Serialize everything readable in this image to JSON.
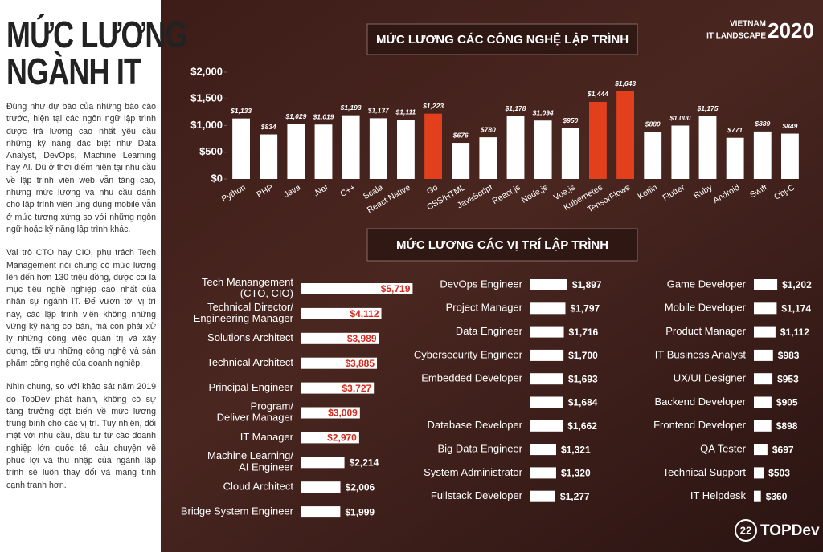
{
  "sidebar": {
    "title_lines": [
      "MỨC LƯƠNG",
      "NGÀNH IT"
    ],
    "paragraphs": [
      "Đúng như dự báo của những báo cáo trước, hiện tại các ngôn ngữ lập trình được trả lương cao nhất yêu cầu những kỹ năng đặc biệt như Data Analyst, DevOps, Machine Learning hay AI. Dù ở thời điểm hiện tại nhu cầu về lập trình viên web vẫn tăng cao, nhưng mức lương và nhu cầu dành cho lập trình viên ứng dụng mobile vẫn ở mức tương xứng so với những ngôn ngữ hoặc kỹ năng lập trình khác.",
      "Vai trò CTO hay CIO, phụ trách Tech Management nói chung có mức lương lên đến hơn 130 triệu đồng, được coi là mục tiêu nghề nghiệp cao nhất của nhân sự ngành IT. Để vươn tới vị trí này, các lập trình viên không những vững kỹ năng cơ bản, mà còn phải xử lý những công việc quản trị và xây dựng, tối ưu những công nghệ và sản phẩm công nghệ của doanh nghiệp.",
      "Nhìn chung, so với khảo sát năm 2019 do TopDev phát hành, không có sự tăng trưởng đột biến về mức lương trung bình cho các vị trí. Tuy nhiên, đối mặt với nhu cầu, đầu tư từ các doanh nghiệp lớn quốc tế, câu chuyện về phúc lợi và thu nhập của ngành lập trình sẽ luôn thay đổi và mang tính cạnh tranh hơn."
    ]
  },
  "brand": {
    "country": "VIETNAM",
    "name": "IT LANDSCAPE",
    "year": "2020",
    "logo_number": "22",
    "logo_text": "TOPDev"
  },
  "chart_data": [
    {
      "type": "bar",
      "title": "MỨC LƯƠNG CÁC CÔNG NGHỆ LẬP TRÌNH",
      "categories": [
        "Python",
        "PHP",
        "Java",
        ".Net",
        "C++",
        "Scala",
        "React Native",
        "Go",
        "CSS/HTML",
        "JavaScript",
        "React.js",
        "Node.js",
        "Vue.js",
        "Kubernetes",
        "TensorFlows",
        "Kotlin",
        "Flutter",
        "Ruby",
        "Android",
        "Swift",
        "Obj-C"
      ],
      "values": [
        1133,
        834,
        1029,
        1019,
        1193,
        1137,
        1111,
        1223,
        676,
        780,
        1178,
        1094,
        950,
        1444,
        1643,
        880,
        1000,
        1175,
        771,
        889,
        849
      ],
      "value_labels": [
        "$1,133",
        "$834",
        "$1,029",
        "$1,019",
        "$1,193",
        "$1,137",
        "$1,111",
        "$1,223",
        "$676",
        "$780",
        "$1,178",
        "$1,094",
        "$950",
        "$1,444",
        "$1,643",
        "$880",
        "$1,000",
        "$1,175",
        "$771",
        "$889",
        "$849"
      ],
      "colors": [
        "#ffffff",
        "#ffffff",
        "#ffffff",
        "#ffffff",
        "#ffffff",
        "#ffffff",
        "#ffffff",
        "#e2401c",
        "#ffffff",
        "#ffffff",
        "#ffffff",
        "#ffffff",
        "#ffffff",
        "#e2401c",
        "#e2401c",
        "#ffffff",
        "#ffffff",
        "#ffffff",
        "#ffffff",
        "#ffffff",
        "#ffffff"
      ],
      "ylim": [
        0,
        2000
      ],
      "yticks": [
        {
          "value": 0,
          "label": "$0"
        },
        {
          "value": 500,
          "label": "$500"
        },
        {
          "value": 1000,
          "label": "$1,000"
        },
        {
          "value": 1500,
          "label": "$1,500"
        },
        {
          "value": 2000,
          "label": "$2,000"
        }
      ]
    },
    {
      "type": "bar",
      "orientation": "horizontal",
      "title": "MỨC LƯƠNG CÁC VỊ TRÍ LẬP TRÌNH",
      "color": "#ffffff",
      "categories": [
        "Tech Manangement\n(CTO, CIO)",
        "Technical Director/\nEngineering Manager",
        "Solutions Architect",
        "Technical Architect",
        "Principal Engineer",
        "Program/\nDeliver Manager",
        "IT Manager",
        "Machine Learning/\nAI Engineer",
        "Cloud Architect",
        "Bridge System Engineer"
      ],
      "values": [
        5719,
        4112,
        3989,
        3885,
        3727,
        3009,
        2970,
        2214,
        2006,
        1999
      ],
      "value_labels": [
        "$5,719",
        "$4,112",
        "$3,989",
        "$3,885",
        "$3,727",
        "$3,009",
        "$2,970",
        "$2,214",
        "$2,006",
        "$1,999"
      ]
    },
    {
      "type": "bar",
      "orientation": "horizontal",
      "color": "#ffffff",
      "categories": [
        "DevOps Engineer",
        "Project Manager",
        "Data Engineer",
        "Cybersecurity Engineer",
        "Embedded Developer",
        null,
        "Database Developer",
        "Big Data Engineer",
        "System Administrator",
        "Fullstack Developer"
      ],
      "values": [
        1897,
        1797,
        1716,
        1700,
        1693,
        1684,
        1662,
        1321,
        1320,
        1277
      ],
      "value_labels": [
        "$1,897",
        "$1,797",
        "$1,716",
        "$1,700",
        "$1,693",
        "$1,684",
        "$1,662",
        "$1,321",
        "$1,320",
        "$1,277"
      ]
    },
    {
      "type": "bar",
      "orientation": "horizontal",
      "color": "#ffffff",
      "categories": [
        "Game Developer",
        "Mobile Developer",
        "Product Manager",
        "IT Business Analyst",
        "UX/UI Designer",
        "Backend Developer",
        "Frontend Developer",
        "QA Tester",
        "Technical Support",
        "IT Helpdesk"
      ],
      "values": [
        1202,
        1174,
        1112,
        983,
        953,
        905,
        898,
        697,
        503,
        360
      ],
      "value_labels": [
        "$1,202",
        "$1,174",
        "$1,112",
        "$983",
        "$953",
        "$905",
        "$898",
        "$697",
        "$503",
        "$360"
      ]
    }
  ]
}
